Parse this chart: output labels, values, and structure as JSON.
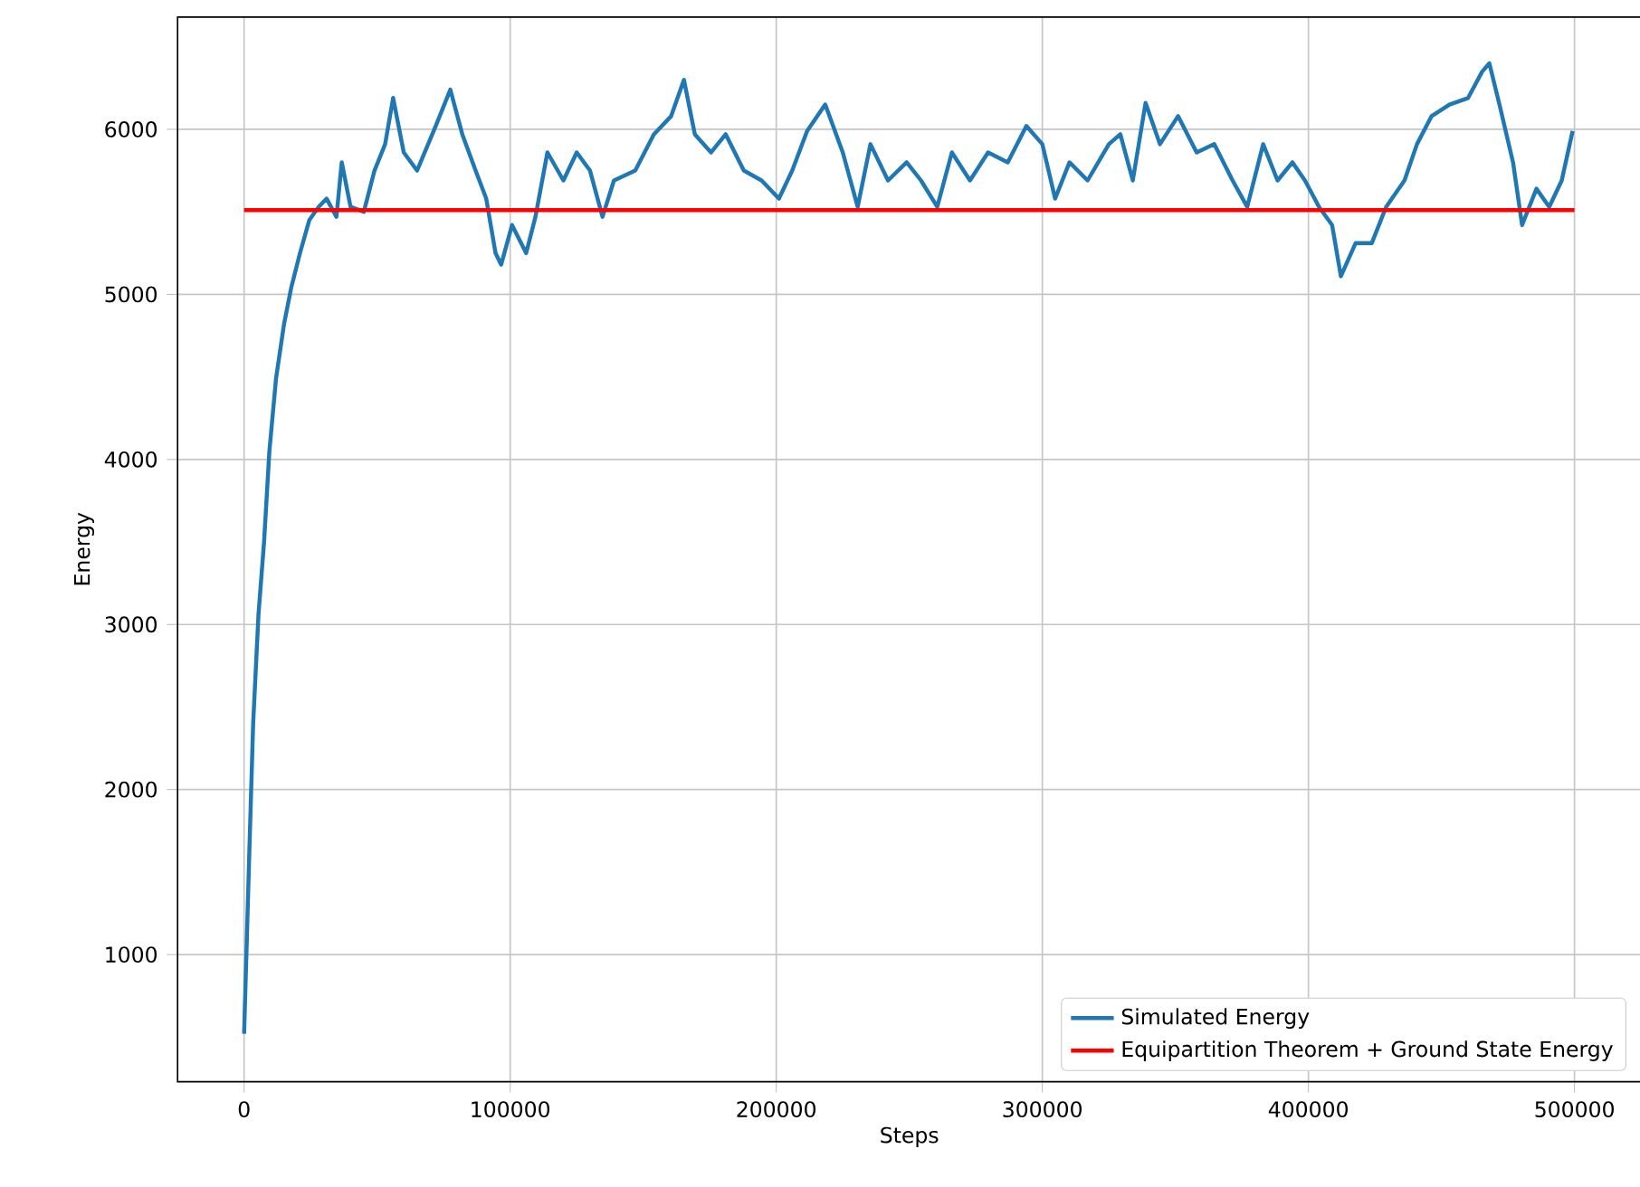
{
  "chart_data": {
    "type": "line",
    "xlabel": "Steps",
    "ylabel": "Energy",
    "xlim": [
      -25000,
      525000
    ],
    "ylim": [
      230,
      6680
    ],
    "xticks": [
      0,
      100000,
      200000,
      300000,
      400000,
      500000
    ],
    "yticks": [
      1000,
      2000,
      3000,
      4000,
      5000,
      6000
    ],
    "grid": true,
    "legend": "bottom right",
    "series": [
      {
        "name": "Simulated Energy",
        "color": "#1f77b4",
        "x": [
          0,
          2000,
          3400,
          5400,
          7500,
          9500,
          12000,
          15000,
          17700,
          21000,
          24500,
          28000,
          31000,
          34700,
          36700,
          40000,
          45000,
          49000,
          53000,
          56000,
          60000,
          65000,
          72000,
          77500,
          82000,
          87000,
          91000,
          94500,
          96600,
          100700,
          106000,
          109500,
          114000,
          120000,
          125000,
          130000,
          134700,
          139000,
          147000,
          154000,
          160500,
          165300,
          169400,
          175500,
          181000,
          187800,
          194500,
          201000,
          206000,
          211600,
          218400,
          225000,
          230600,
          235400,
          242000,
          249000,
          254400,
          260500,
          266000,
          272800,
          279600,
          287000,
          294000,
          300000,
          304800,
          310200,
          317000,
          325000,
          329300,
          334000,
          338800,
          344200,
          351000,
          358000,
          364600,
          371500,
          377000,
          383000,
          388400,
          394000,
          398700,
          404000,
          408900,
          412200,
          417700,
          423800,
          429200,
          436100,
          440800,
          446300,
          453000,
          460000,
          465300,
          468000,
          472100,
          476900,
          480300,
          485700,
          490500,
          495200,
          499300
        ],
        "values": [
          520,
          1640,
          2400,
          3060,
          3500,
          4050,
          4490,
          4820,
          5040,
          5250,
          5450,
          5530,
          5580,
          5470,
          5800,
          5530,
          5500,
          5750,
          5910,
          6190,
          5860,
          5750,
          6020,
          6240,
          5970,
          5750,
          5580,
          5250,
          5180,
          5420,
          5250,
          5470,
          5860,
          5690,
          5860,
          5750,
          5470,
          5690,
          5750,
          5970,
          6080,
          6300,
          5970,
          5860,
          5970,
          5750,
          5690,
          5580,
          5750,
          5990,
          6150,
          5860,
          5530,
          5910,
          5690,
          5800,
          5690,
          5530,
          5860,
          5690,
          5860,
          5800,
          6020,
          5910,
          5580,
          5800,
          5690,
          5910,
          5970,
          5690,
          6160,
          5910,
          6080,
          5860,
          5910,
          5690,
          5530,
          5910,
          5690,
          5800,
          5690,
          5530,
          5420,
          5110,
          5310,
          5310,
          5530,
          5690,
          5910,
          6080,
          6150,
          6190,
          6350,
          6400,
          6130,
          5800,
          5420,
          5640,
          5530,
          5690,
          5990
        ]
      },
      {
        "name": "Equipartition Theorem + Ground State Energy",
        "color": "#ff0000",
        "x": [
          0,
          500000
        ],
        "values": [
          5510,
          5510
        ]
      }
    ]
  }
}
